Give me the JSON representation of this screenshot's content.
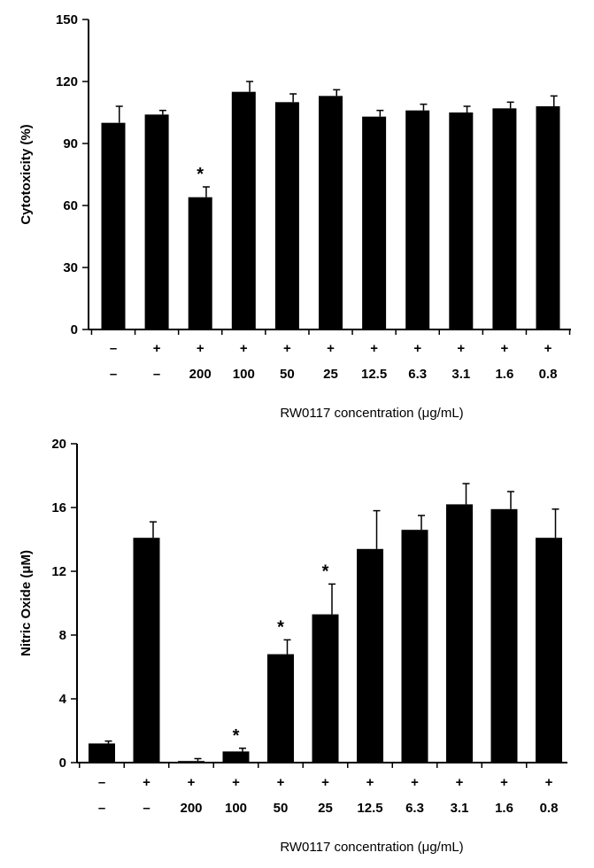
{
  "chart_data": [
    {
      "type": "bar",
      "ylabel": "Cytotoxicity (%)",
      "xlabel": "RW0117 concentration (μg/mL)",
      "ylim": [
        0,
        150
      ],
      "yticks": [
        "0",
        "30",
        "60",
        "90",
        "120",
        "150"
      ],
      "lps_row": [
        "–",
        "+",
        "+",
        "+",
        "+",
        "+",
        "+",
        "+",
        "+",
        "+",
        "+"
      ],
      "categories": [
        "–",
        "–",
        "200",
        "100",
        "50",
        "25",
        "12.5",
        "6.3",
        "3.1",
        "1.6",
        "0.8"
      ],
      "values": [
        100,
        104,
        64,
        115,
        110,
        113,
        103,
        106,
        105,
        107,
        108
      ],
      "errors": [
        8,
        2,
        5,
        5,
        4,
        3,
        3,
        3,
        3,
        3,
        5
      ],
      "significance": [
        "",
        "",
        "*",
        "",
        "",
        "",
        "",
        "",
        "",
        "",
        ""
      ]
    },
    {
      "type": "bar",
      "ylabel": "Nitric Oxide (μM)",
      "xlabel": "RW0117 concentration (μg/mL)",
      "ylim": [
        0,
        20
      ],
      "yticks": [
        "0",
        "4",
        "8",
        "12",
        "16",
        "20"
      ],
      "lps_row": [
        "–",
        "+",
        "+",
        "+",
        "+",
        "+",
        "+",
        "+",
        "+",
        "+",
        "+"
      ],
      "categories": [
        "–",
        "–",
        "200",
        "100",
        "50",
        "25",
        "12.5",
        "6.3",
        "3.1",
        "1.6",
        "0.8"
      ],
      "values": [
        1.2,
        14.1,
        0.1,
        0.7,
        6.8,
        9.3,
        13.4,
        14.6,
        16.2,
        15.9,
        14.1
      ],
      "errors": [
        0.15,
        1.0,
        0.15,
        0.2,
        0.9,
        1.9,
        2.4,
        0.9,
        1.3,
        1.1,
        1.8
      ],
      "significance": [
        "",
        "",
        "",
        "*",
        "*",
        "*",
        "",
        "",
        "",
        "",
        ""
      ]
    }
  ]
}
